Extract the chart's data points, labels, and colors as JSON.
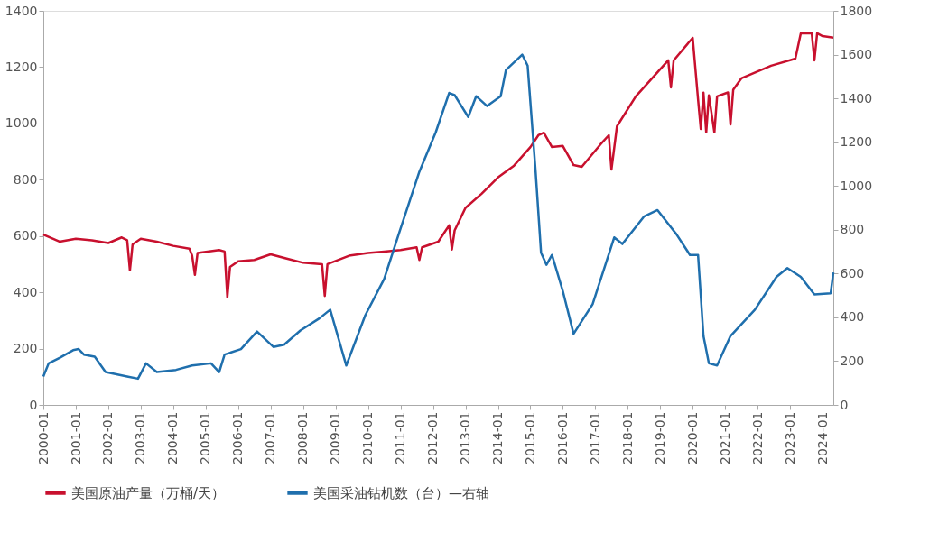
{
  "chart_data": {
    "type": "line",
    "xlim": [
      "2000-01",
      "2024-05"
    ],
    "xticks": [
      "2000-01",
      "2001-01",
      "2002-01",
      "2003-01",
      "2004-01",
      "2005-01",
      "2006-01",
      "2007-01",
      "2008-01",
      "2009-01",
      "2010-01",
      "2011-01",
      "2012-01",
      "2013-01",
      "2014-01",
      "2015-01",
      "2016-01",
      "2017-01",
      "2018-01",
      "2019-01",
      "2020-01",
      "2021-01",
      "2022-01",
      "2023-01",
      "2024-01"
    ],
    "ylim": [
      0,
      1400
    ],
    "yticks": [
      0,
      200,
      400,
      600,
      800,
      1000,
      1200,
      1400
    ],
    "y2lim": [
      0,
      1800
    ],
    "y2ticks": [
      0,
      200,
      400,
      600,
      800,
      1000,
      1200,
      1400,
      1600,
      1800
    ],
    "grid": false,
    "legend": "bottom",
    "marker": "none",
    "line_style": "solid",
    "series": [
      {
        "name": "美国原油产量（万桶/天）",
        "color": "#c8102e",
        "x": [
          "2000-01",
          "2000-07",
          "2001-01",
          "2001-07",
          "2002-01",
          "2002-06",
          "2002-08",
          "2002-09",
          "2002-10",
          "2003-01",
          "2003-07",
          "2004-01",
          "2004-07",
          "2004-08",
          "2004-09",
          "2004-10",
          "2005-06",
          "2005-08",
          "2005-09",
          "2005-10",
          "2006-01",
          "2006-07",
          "2007-01",
          "2007-07",
          "2008-01",
          "2008-08",
          "2008-09",
          "2008-10",
          "2009-06",
          "2010-01",
          "2010-07",
          "2011-01",
          "2011-07",
          "2011-08",
          "2011-09",
          "2012-03",
          "2012-07",
          "2012-08",
          "2012-09",
          "2013-01",
          "2013-07",
          "2014-01",
          "2014-07",
          "2015-01",
          "2015-04",
          "2015-06",
          "2015-09",
          "2016-01",
          "2016-05",
          "2016-08",
          "2017-03",
          "2017-06",
          "2017-07",
          "2017-09",
          "2018-04",
          "2018-12",
          "2019-04",
          "2019-05",
          "2019-06",
          "2020-01",
          "2020-03",
          "2020-04",
          "2020-05",
          "2020-06",
          "2020-07",
          "2020-09",
          "2020-10",
          "2021-02",
          "2021-03",
          "2021-04",
          "2021-07",
          "2022-06",
          "2023-03",
          "2023-05",
          "2023-09",
          "2023-10",
          "2023-11",
          "2024-01",
          "2024-05"
        ],
        "values": [
          605,
          580,
          590,
          585,
          575,
          595,
          585,
          478,
          570,
          590,
          580,
          565,
          555,
          530,
          462,
          540,
          550,
          545,
          382,
          490,
          510,
          515,
          535,
          520,
          505,
          500,
          387,
          500,
          530,
          540,
          545,
          550,
          560,
          515,
          560,
          580,
          638,
          552,
          620,
          700,
          750,
          808,
          850,
          916,
          958,
          967,
          916,
          920,
          852,
          846,
          926,
          958,
          836,
          990,
          1096,
          1182,
          1224,
          1128,
          1224,
          1304,
          1086,
          980,
          1109,
          968,
          1100,
          968,
          1096,
          1110,
          996,
          1120,
          1160,
          1205,
          1230,
          1320,
          1320,
          1224,
          1320,
          1310,
          1305
        ]
      },
      {
        "name": "美国采油钻机数（台）—右轴",
        "color": "#1f6fad",
        "axis": "y2",
        "x": [
          "2000-01",
          "2000-03",
          "2000-07",
          "2000-12",
          "2001-02",
          "2001-04",
          "2001-08",
          "2001-12",
          "2002-08",
          "2002-12",
          "2003-03",
          "2003-07",
          "2004-02",
          "2004-08",
          "2005-03",
          "2005-06",
          "2005-08",
          "2006-02",
          "2006-08",
          "2007-02",
          "2007-06",
          "2007-12",
          "2008-07",
          "2008-11",
          "2009-05",
          "2009-12",
          "2010-07",
          "2011-01",
          "2011-08",
          "2012-02",
          "2012-07",
          "2012-09",
          "2013-02",
          "2013-05",
          "2013-09",
          "2014-02",
          "2014-04",
          "2014-10",
          "2014-12",
          "2015-03",
          "2015-05",
          "2015-07",
          "2015-09",
          "2016-01",
          "2016-05",
          "2016-12",
          "2017-08",
          "2017-11",
          "2018-07",
          "2018-12",
          "2019-07",
          "2019-12",
          "2020-03",
          "2020-05",
          "2020-07",
          "2020-10",
          "2021-03",
          "2021-12",
          "2022-08",
          "2022-12",
          "2023-05",
          "2023-10",
          "2024-04",
          "2024-05"
        ],
        "values": [
          130,
          190,
          215,
          250,
          255,
          230,
          220,
          150,
          130,
          120,
          190,
          150,
          160,
          180,
          190,
          150,
          230,
          255,
          335,
          265,
          275,
          340,
          395,
          435,
          180,
          410,
          575,
          805,
          1065,
          1245,
          1425,
          1415,
          1315,
          1410,
          1365,
          1410,
          1530,
          1600,
          1550,
          1065,
          695,
          640,
          685,
          520,
          325,
          460,
          765,
          735,
          860,
          890,
          780,
          685,
          685,
          315,
          190,
          180,
          315,
          435,
          585,
          625,
          585,
          505,
          510,
          605
        ]
      }
    ]
  }
}
